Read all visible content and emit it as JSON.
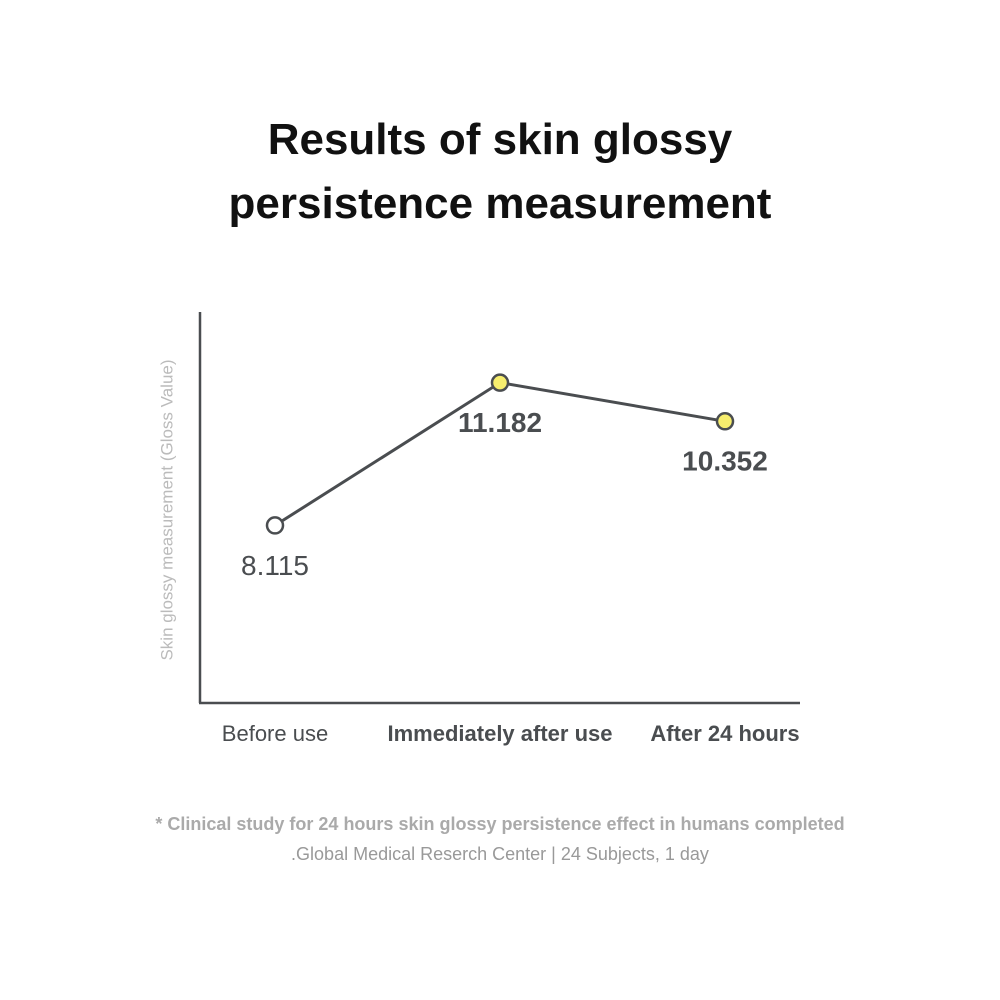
{
  "chart_data": {
    "type": "line",
    "title": "Results of skin glossy persistence measurement",
    "y_label": "Skin glossy measurement (Gloss Value)",
    "categories": [
      "Before use",
      "Immediately after use",
      "After 24 hours"
    ],
    "series": [
      {
        "name": "Gloss Value",
        "color": "#4a4d50",
        "values": [
          8.115,
          11.182,
          10.352
        ],
        "marker_colors": [
          "#ffffff",
          "#f7ee6e",
          "#f7ee6e"
        ]
      }
    ],
    "ylim": [
      4.3,
      12.7
    ],
    "footnote": "* Clinical study for 24 hours skin glossy persistence effect in humans completed",
    "source": ".Global Medical Reserch Center | 24 Subjects, 1 day"
  }
}
